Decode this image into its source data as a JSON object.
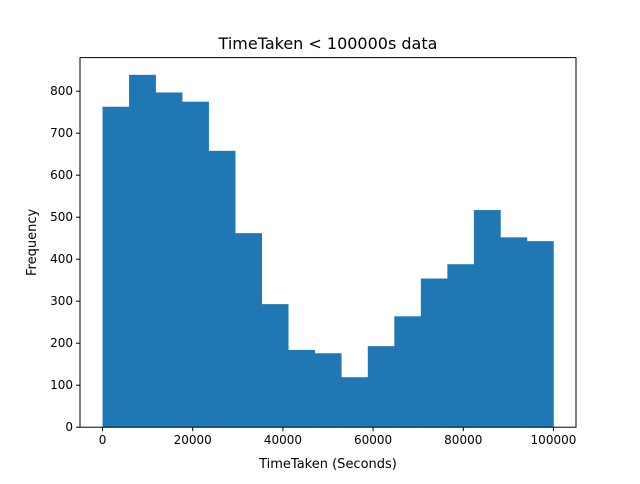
{
  "chart_data": {
    "type": "bar",
    "title": "TimeTaken < 100000s data",
    "xlabel": "TimeTaken (Seconds)",
    "ylabel": "Frequency",
    "xlim": [
      -5000,
      105000
    ],
    "ylim": [
      0,
      880
    ],
    "x_ticks": [
      0,
      20000,
      40000,
      60000,
      80000,
      100000
    ],
    "y_ticks": [
      0,
      100,
      200,
      300,
      400,
      500,
      600,
      700,
      800
    ],
    "bin_edges": [
      0,
      5882,
      11765,
      17647,
      23529,
      29412,
      35294,
      41176,
      47059,
      52941,
      58824,
      64706,
      70588,
      76471,
      82353,
      88235,
      94118,
      100000
    ],
    "values": [
      763,
      839,
      797,
      775,
      658,
      462,
      293,
      184,
      176,
      119,
      193,
      264,
      354,
      388,
      517,
      452,
      443
    ],
    "bar_color": "#1f77b4",
    "grid": false,
    "legend": "none"
  }
}
